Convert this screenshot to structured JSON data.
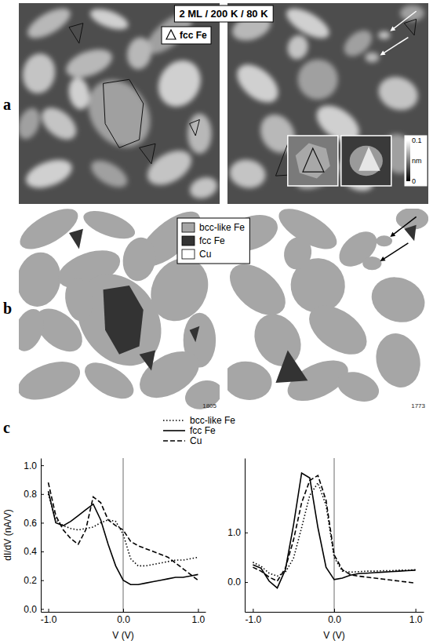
{
  "figure": {
    "panel_labels": [
      "a",
      "b",
      "c"
    ],
    "panel_a": {
      "title": "2 ML / 200 K / 80 K",
      "legend_label": "fcc Fe",
      "colorbar": {
        "unit": "nm",
        "range": [
          0,
          0.1
        ],
        "ticks": [
          0.1,
          0
        ]
      }
    },
    "panel_b": {
      "legend": [
        {
          "name": "bcc-like Fe",
          "color": "#a6a6a6"
        },
        {
          "name": "fcc Fe",
          "color": "#333333"
        },
        {
          "name": "Cu",
          "color": "#ffffff"
        }
      ],
      "image_numbers": [
        "1805",
        "1773"
      ]
    }
  },
  "chart_data": [
    {
      "type": "line",
      "x": [
        -1,
        -0.9,
        -0.8,
        -0.7,
        -0.6,
        -0.5,
        -0.4,
        -0.3,
        -0.2,
        -0.1,
        0,
        0.1,
        0.2,
        0.3,
        0.4,
        0.5,
        0.6,
        0.7,
        0.8,
        0.9,
        1
      ],
      "xlim": [
        -1.1,
        1.1
      ],
      "xticks": [
        {
          "value": -1,
          "label": "-1.0"
        },
        {
          "value": 0,
          "label": "0.0"
        },
        {
          "value": 1,
          "label": "1.0"
        }
      ],
      "ylim": [
        -0.02,
        1.05
      ],
      "yticks": [
        {
          "value": 0,
          "label": "0.0"
        },
        0.2,
        0.4,
        0.6,
        0.8,
        {
          "value": 1,
          "label": "1.0"
        }
      ],
      "x_label": "V (V)",
      "y_label": "dI/dV (nA/V)",
      "legend": "top",
      "vline": 0,
      "series": [
        {
          "name": "bcc-like Fe",
          "color": "#000000",
          "line_style": "dotted",
          "values": [
            0.8,
            0.62,
            0.58,
            0.56,
            0.55,
            0.56,
            0.57,
            0.6,
            0.62,
            0.61,
            0.52,
            0.35,
            0.3,
            0.3,
            0.31,
            0.32,
            0.33,
            0.34,
            0.34,
            0.35,
            0.36
          ]
        },
        {
          "name": "fcc Fe",
          "color": "#000000",
          "line_style": "solid",
          "values": [
            0.82,
            0.6,
            0.58,
            0.61,
            0.65,
            0.69,
            0.73,
            0.62,
            0.45,
            0.3,
            0.2,
            0.17,
            0.17,
            0.18,
            0.19,
            0.2,
            0.21,
            0.22,
            0.22,
            0.23,
            0.24
          ]
        },
        {
          "name": "Cu",
          "color": "#000000",
          "line_style": "dashed",
          "values": [
            0.88,
            0.65,
            0.55,
            0.49,
            0.45,
            0.55,
            0.78,
            0.74,
            0.62,
            0.58,
            0.55,
            0.47,
            0.44,
            0.42,
            0.4,
            0.38,
            0.36,
            0.32,
            0.28,
            0.24,
            0.2
          ]
        }
      ]
    },
    {
      "type": "line",
      "x": [
        -1,
        -0.9,
        -0.8,
        -0.7,
        -0.6,
        -0.5,
        -0.4,
        -0.3,
        -0.2,
        -0.1,
        0,
        0.1,
        0.2,
        0.3,
        0.4,
        0.5,
        0.6,
        0.7,
        0.8,
        0.9,
        1
      ],
      "xlim": [
        -1.1,
        1.1
      ],
      "xticks": [
        {
          "value": -1,
          "label": "-1.0"
        },
        {
          "value": 0,
          "label": "0.0"
        },
        {
          "value": 1,
          "label": "1.0"
        }
      ],
      "ylim": [
        -0.6,
        2.5
      ],
      "yticks": [
        {
          "value": 0,
          "label": "0.0"
        },
        {
          "value": 1,
          "label": "1.0"
        }
      ],
      "x_label": "V (V)",
      "vline": 0,
      "series": [
        {
          "color": "#000000",
          "line_style": "dotted",
          "values": [
            0.4,
            0.32,
            0.18,
            0.12,
            0.2,
            0.48,
            1.1,
            1.75,
            2.0,
            1.55,
            0.5,
            0.22,
            0.2,
            0.21,
            0.22,
            0.22,
            0.23,
            0.23,
            0.24,
            0.24,
            0.25
          ]
        },
        {
          "color": "#000000",
          "line_style": "solid",
          "values": [
            0.35,
            0.28,
            0.02,
            -0.12,
            0.25,
            1.15,
            2.2,
            2.1,
            1.1,
            0.3,
            0.05,
            0.08,
            0.14,
            0.17,
            0.18,
            0.19,
            0.2,
            0.21,
            0.22,
            0.23,
            0.24
          ]
        },
        {
          "color": "#000000",
          "line_style": "dashed",
          "values": [
            0.3,
            0.22,
            0.1,
            0.02,
            0.28,
            0.85,
            1.6,
            2.05,
            2.15,
            1.65,
            0.55,
            0.25,
            0.15,
            0.12,
            0.1,
            0.08,
            0.06,
            0.04,
            0.02,
            0.0,
            -0.02
          ]
        }
      ]
    }
  ]
}
